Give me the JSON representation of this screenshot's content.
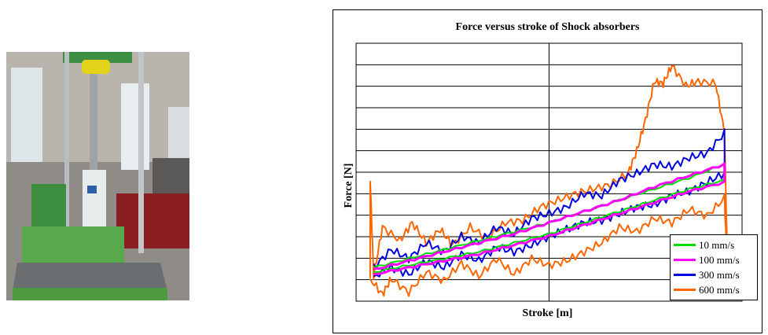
{
  "chart_data": {
    "type": "line",
    "title": "Force versus stroke of Shock absorbers",
    "xlabel": "Stroke [m]",
    "ylabel": "Force [N]",
    "grid": true,
    "legend_position": "bottom-right",
    "series": [
      {
        "name": "10 mm/s",
        "color": "#00dd00",
        "points": [
          [
            -1.0,
            -3.0
          ],
          [
            -0.8,
            -2.6
          ],
          [
            -0.6,
            -2.2
          ],
          [
            -0.4,
            -1.8
          ],
          [
            -0.2,
            -1.4
          ],
          [
            0.0,
            -1.0
          ],
          [
            0.2,
            -0.5
          ],
          [
            0.4,
            0.0
          ],
          [
            0.6,
            0.5
          ],
          [
            0.8,
            1.0
          ],
          [
            1.0,
            1.6
          ],
          [
            1.0,
            0.9
          ],
          [
            0.8,
            0.5
          ],
          [
            0.6,
            0.0
          ],
          [
            0.4,
            -0.5
          ],
          [
            0.2,
            -1.0
          ],
          [
            0.0,
            -1.5
          ],
          [
            -0.2,
            -1.9
          ],
          [
            -0.4,
            -2.3
          ],
          [
            -0.6,
            -2.6
          ],
          [
            -0.8,
            -2.9
          ],
          [
            -1.0,
            -3.2
          ]
        ]
      },
      {
        "name": "100 mm/s",
        "color": "#ff00ff",
        "points": [
          [
            -1.0,
            -3.1
          ],
          [
            -0.8,
            -2.7
          ],
          [
            -0.6,
            -2.3
          ],
          [
            -0.4,
            -1.9
          ],
          [
            -0.2,
            -1.5
          ],
          [
            0.0,
            -1.0
          ],
          [
            0.2,
            -0.5
          ],
          [
            0.4,
            0.0
          ],
          [
            0.6,
            0.6
          ],
          [
            0.8,
            1.1
          ],
          [
            1.0,
            1.6
          ],
          [
            1.0,
            0.8
          ],
          [
            0.8,
            0.4
          ],
          [
            0.6,
            -0.1
          ],
          [
            0.4,
            -0.6
          ],
          [
            0.2,
            -1.1
          ],
          [
            0.0,
            -1.6
          ],
          [
            -0.2,
            -2.0
          ],
          [
            -0.4,
            -2.4
          ],
          [
            -0.6,
            -2.7
          ],
          [
            -0.8,
            -3.0
          ],
          [
            -1.0,
            -3.3
          ]
        ]
      },
      {
        "name": "300 mm/s",
        "color": "#0000dd",
        "points": [
          [
            -1.0,
            -3.0
          ],
          [
            -0.9,
            -2.2
          ],
          [
            -0.8,
            -2.6
          ],
          [
            -0.7,
            -1.9
          ],
          [
            -0.6,
            -2.3
          ],
          [
            -0.5,
            -1.6
          ],
          [
            -0.4,
            -1.9
          ],
          [
            -0.3,
            -1.2
          ],
          [
            -0.2,
            -1.5
          ],
          [
            -0.1,
            -0.8
          ],
          [
            0.0,
            -0.6
          ],
          [
            0.1,
            -0.3
          ],
          [
            0.2,
            0.3
          ],
          [
            0.3,
            0.2
          ],
          [
            0.4,
            0.9
          ],
          [
            0.5,
            1.2
          ],
          [
            0.6,
            1.6
          ],
          [
            0.7,
            1.5
          ],
          [
            0.8,
            1.9
          ],
          [
            0.9,
            2.1
          ],
          [
            1.0,
            3.0
          ],
          [
            1.0,
            1.2
          ],
          [
            0.9,
            0.8
          ],
          [
            0.8,
            0.4
          ],
          [
            0.7,
            0.2
          ],
          [
            0.6,
            -0.2
          ],
          [
            0.5,
            -0.3
          ],
          [
            0.4,
            -0.6
          ],
          [
            0.3,
            -0.9
          ],
          [
            0.2,
            -1.0
          ],
          [
            0.1,
            -1.3
          ],
          [
            0.0,
            -1.6
          ],
          [
            -0.1,
            -2.0
          ],
          [
            -0.2,
            -2.3
          ],
          [
            -0.3,
            -2.1
          ],
          [
            -0.4,
            -2.7
          ],
          [
            -0.5,
            -2.4
          ],
          [
            -0.6,
            -3.0
          ],
          [
            -0.7,
            -2.7
          ],
          [
            -0.8,
            -3.3
          ],
          [
            -0.9,
            -3.0
          ],
          [
            -1.0,
            -3.4
          ]
        ]
      },
      {
        "name": "600 mm/s",
        "color": "#ff6600",
        "points": [
          [
            -1.02,
            -3.5
          ],
          [
            -1.02,
            1.0
          ],
          [
            -1.0,
            -3.4
          ],
          [
            -0.95,
            -1.2
          ],
          [
            -0.85,
            -1.8
          ],
          [
            -0.78,
            -1.0
          ],
          [
            -0.7,
            -1.9
          ],
          [
            -0.62,
            -1.3
          ],
          [
            -0.55,
            -2.0
          ],
          [
            -0.45,
            -1.2
          ],
          [
            -0.35,
            -1.7
          ],
          [
            -0.25,
            -1.0
          ],
          [
            -0.15,
            -0.9
          ],
          [
            -0.05,
            -0.3
          ],
          [
            0.05,
            0.0
          ],
          [
            0.15,
            0.3
          ],
          [
            0.25,
            0.5
          ],
          [
            0.35,
            0.7
          ],
          [
            0.45,
            1.2
          ],
          [
            0.5,
            2.2
          ],
          [
            0.55,
            3.6
          ],
          [
            0.6,
            5.3
          ],
          [
            0.65,
            5.2
          ],
          [
            0.7,
            6.0
          ],
          [
            0.78,
            5.1
          ],
          [
            0.85,
            5.3
          ],
          [
            0.95,
            5.2
          ],
          [
            1.0,
            3.0
          ],
          [
            1.02,
            -4.1
          ],
          [
            1.0,
            0.1
          ],
          [
            0.9,
            -0.7
          ],
          [
            0.8,
            -0.4
          ],
          [
            0.7,
            -1.0
          ],
          [
            0.6,
            -0.8
          ],
          [
            0.5,
            -1.4
          ],
          [
            0.4,
            -1.2
          ],
          [
            0.3,
            -1.9
          ],
          [
            0.2,
            -2.3
          ],
          [
            0.1,
            -2.7
          ],
          [
            0.0,
            -2.9
          ],
          [
            -0.1,
            -2.6
          ],
          [
            -0.2,
            -3.3
          ],
          [
            -0.3,
            -2.6
          ],
          [
            -0.4,
            -3.4
          ],
          [
            -0.5,
            -2.8
          ],
          [
            -0.6,
            -3.6
          ],
          [
            -0.7,
            -3.2
          ],
          [
            -0.8,
            -4.1
          ],
          [
            -0.9,
            -3.5
          ],
          [
            -0.95,
            -4.2
          ],
          [
            -1.02,
            -3.5
          ]
        ]
      }
    ]
  }
}
